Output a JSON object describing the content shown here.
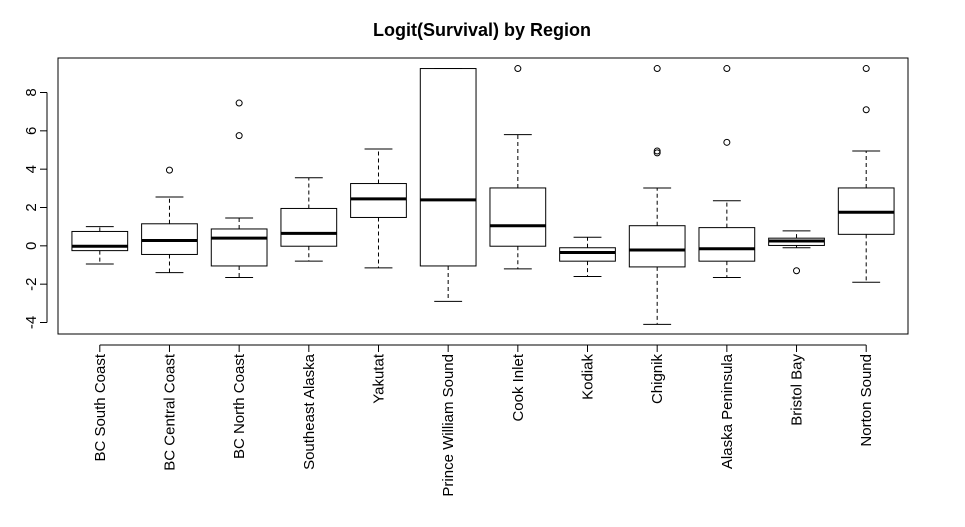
{
  "chart_data": {
    "type": "box",
    "title": "Logit(Survival) by Region",
    "xlabel": "",
    "ylabel": "",
    "ylim": [
      -4.6,
      9.8
    ],
    "yticks": [
      -4,
      -2,
      0,
      2,
      4,
      6,
      8
    ],
    "grid": false,
    "categories": [
      "BC South Coast",
      "BC Central Coast",
      "BC North Coast",
      "Southeast Alaska",
      "Yakutat",
      "Prince William Sound",
      "Cook Inlet",
      "Kodiak",
      "Chignik",
      "Alaska Peninsula",
      "Bristol Bay",
      "Norton Sound"
    ],
    "boxes": [
      {
        "whisker_low": -0.95,
        "q1": -0.25,
        "median": -0.02,
        "q3": 0.75,
        "whisker_high": 1.0,
        "outliers": []
      },
      {
        "whisker_low": -1.4,
        "q1": -0.45,
        "median": 0.28,
        "q3": 1.15,
        "whisker_high": 2.55,
        "outliers": [
          3.95
        ]
      },
      {
        "whisker_low": -1.65,
        "q1": -1.05,
        "median": 0.4,
        "q3": 0.88,
        "whisker_high": 1.45,
        "outliers": [
          5.75,
          7.45
        ]
      },
      {
        "whisker_low": -0.8,
        "q1": -0.02,
        "median": 0.65,
        "q3": 1.95,
        "whisker_high": 3.55,
        "outliers": []
      },
      {
        "whisker_low": -1.15,
        "q1": 1.48,
        "median": 2.45,
        "q3": 3.25,
        "whisker_high": 5.05,
        "outliers": []
      },
      {
        "whisker_low": -2.9,
        "q1": -1.05,
        "median": 2.4,
        "q3": 9.25,
        "whisker_high": 9.25,
        "outliers": []
      },
      {
        "whisker_low": -1.2,
        "q1": -0.02,
        "median": 1.05,
        "q3": 3.02,
        "whisker_high": 5.8,
        "outliers": [
          9.25
        ]
      },
      {
        "whisker_low": -1.6,
        "q1": -0.8,
        "median": -0.35,
        "q3": -0.1,
        "whisker_high": 0.45,
        "outliers": []
      },
      {
        "whisker_low": -4.1,
        "q1": -1.1,
        "median": -0.22,
        "q3": 1.05,
        "whisker_high": 3.02,
        "outliers": [
          4.85,
          4.95,
          9.25
        ]
      },
      {
        "whisker_low": -1.65,
        "q1": -0.8,
        "median": -0.15,
        "q3": 0.95,
        "whisker_high": 2.35,
        "outliers": [
          5.4,
          9.25
        ]
      },
      {
        "whisker_low": -0.1,
        "q1": 0.02,
        "median": 0.25,
        "q3": 0.4,
        "whisker_high": 0.78,
        "outliers": [
          -1.3
        ]
      },
      {
        "whisker_low": -1.9,
        "q1": 0.6,
        "median": 1.75,
        "q3": 3.02,
        "whisker_high": 4.95,
        "outliers": [
          7.1,
          9.25
        ]
      }
    ]
  }
}
